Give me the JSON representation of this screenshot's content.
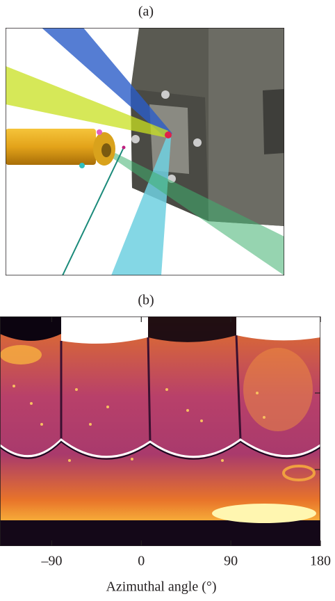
{
  "panel_a": {
    "label": "(a)"
  },
  "panel_b": {
    "label": "(b)",
    "x_axis": {
      "label": "Azimuthal angle (°)",
      "xlim": [
        -142,
        180
      ],
      "xticks": [
        {
          "value": -90,
          "label": "–90"
        },
        0,
        90,
        180
      ]
    }
  }
}
